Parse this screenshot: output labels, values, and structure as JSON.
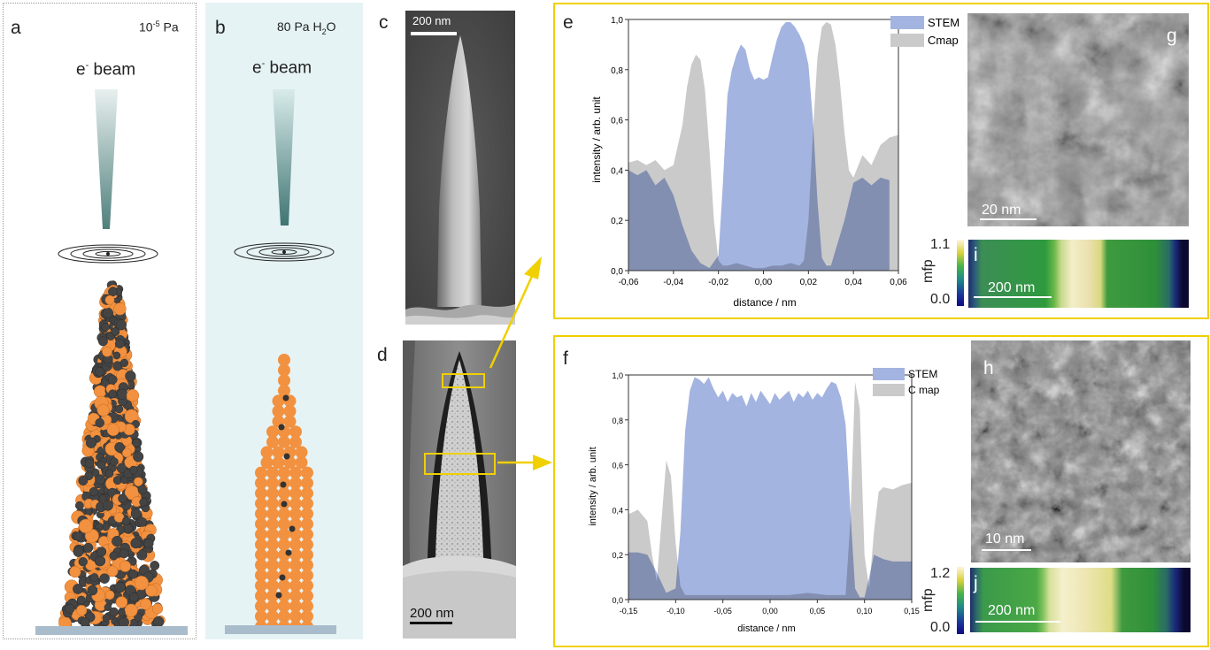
{
  "panels": {
    "a": {
      "label": "a",
      "pressure_base": "10",
      "pressure_exp": "-5",
      "pressure_unit": " Pa",
      "beam_e": "e",
      "beam_sup": "-",
      "beam_word": " beam"
    },
    "b": {
      "label": "b",
      "pressure_pre": "80 Pa H",
      "pressure_sub": "2",
      "pressure_post": "O",
      "beam_e": "e",
      "beam_sup": "-",
      "beam_word": " beam"
    },
    "c": {
      "label": "c",
      "scalebar": "200 nm"
    },
    "d": {
      "label": "d",
      "scalebar": "200 nm"
    },
    "e": {
      "label": "e"
    },
    "f": {
      "label": "f"
    },
    "g": {
      "label": "g",
      "scalebar": "20 nm"
    },
    "h": {
      "label": "h",
      "scalebar": "10 nm"
    },
    "i": {
      "label": "i",
      "scalebar": "200 nm",
      "cbar_label": "mfp",
      "cbar_max": "1.1",
      "cbar_min": "0.0"
    },
    "j": {
      "label": "j",
      "scalebar": "200 nm",
      "cbar_label": "mfp",
      "cbar_max": "1.2",
      "cbar_min": "0.0"
    }
  },
  "colors": {
    "stem": "#a4b4e0",
    "cmap": "#cacaca",
    "overlap": "#7f90c8",
    "yellow": "#f0d000",
    "orange": "#f2913f",
    "dark_sphere": "#444444",
    "panel_b_bg": "#e6f3f5"
  },
  "chart_data": [
    {
      "id": "e",
      "type": "area",
      "xlabel": "distance / nm",
      "ylabel": "intensity / arb. unit",
      "xlim": [
        -0.06,
        0.06
      ],
      "ylim": [
        0,
        1.0
      ],
      "xticks": [
        "-0,06",
        "-0,04",
        "-0,02",
        "0,00",
        "0,02",
        "0,04",
        "0,06"
      ],
      "yticks": [
        "0,0",
        "0,2",
        "0,4",
        "0,6",
        "0,8",
        "1,0"
      ],
      "legend_position": "top-right",
      "series": [
        {
          "name": "STEM",
          "x": [
            -0.06,
            -0.056,
            -0.052,
            -0.048,
            -0.044,
            -0.04,
            -0.036,
            -0.032,
            -0.028,
            -0.024,
            -0.02,
            -0.018,
            -0.016,
            -0.014,
            -0.012,
            -0.01,
            -0.008,
            -0.006,
            -0.004,
            -0.002,
            0.0,
            0.002,
            0.004,
            0.006,
            0.008,
            0.01,
            0.012,
            0.014,
            0.016,
            0.018,
            0.02,
            0.022,
            0.024,
            0.026,
            0.028,
            0.03,
            0.032,
            0.036,
            0.04,
            0.044,
            0.048,
            0.052,
            0.056
          ],
          "y": [
            0.4,
            0.38,
            0.4,
            0.34,
            0.37,
            0.3,
            0.18,
            0.08,
            0.03,
            0.01,
            0.06,
            0.35,
            0.7,
            0.8,
            0.86,
            0.9,
            0.88,
            0.8,
            0.76,
            0.77,
            0.76,
            0.77,
            0.85,
            0.92,
            0.97,
            0.99,
            0.99,
            0.97,
            0.94,
            0.9,
            0.82,
            0.6,
            0.28,
            0.05,
            0.02,
            0.02,
            0.08,
            0.2,
            0.35,
            0.37,
            0.34,
            0.37,
            0.36
          ]
        },
        {
          "name": "Cmap",
          "x": [
            -0.06,
            -0.056,
            -0.052,
            -0.048,
            -0.044,
            -0.04,
            -0.036,
            -0.034,
            -0.032,
            -0.03,
            -0.028,
            -0.026,
            -0.024,
            -0.022,
            -0.02,
            -0.018,
            -0.016,
            -0.012,
            -0.008,
            -0.004,
            0.0,
            0.004,
            0.008,
            0.012,
            0.016,
            0.018,
            0.02,
            0.022,
            0.024,
            0.026,
            0.028,
            0.03,
            0.032,
            0.034,
            0.036,
            0.038,
            0.04,
            0.044,
            0.048,
            0.052,
            0.056,
            0.06
          ],
          "y": [
            0.43,
            0.44,
            0.42,
            0.44,
            0.4,
            0.42,
            0.58,
            0.73,
            0.82,
            0.86,
            0.84,
            0.72,
            0.48,
            0.2,
            0.04,
            0.02,
            0.02,
            0.03,
            0.02,
            0.01,
            0.01,
            0.02,
            0.02,
            0.03,
            0.02,
            0.04,
            0.2,
            0.55,
            0.85,
            0.97,
            0.99,
            0.98,
            0.9,
            0.75,
            0.55,
            0.4,
            0.37,
            0.46,
            0.42,
            0.5,
            0.53,
            0.54
          ]
        }
      ]
    },
    {
      "id": "f",
      "type": "area",
      "xlabel": "distance / nm",
      "ylabel": "intensity / arb. unit",
      "xlim": [
        -0.15,
        0.15
      ],
      "ylim": [
        0,
        1.0
      ],
      "xticks": [
        "-0,15",
        "-0,10",
        "-0,05",
        "0,00",
        "0,05",
        "0,10",
        "0,15"
      ],
      "yticks": [
        "0,0",
        "0,2",
        "0,4",
        "0,6",
        "0,8",
        "1,0"
      ],
      "legend_position": "top-right",
      "series": [
        {
          "name": "STEM",
          "x": [
            -0.15,
            -0.14,
            -0.13,
            -0.12,
            -0.11,
            -0.1,
            -0.095,
            -0.09,
            -0.085,
            -0.08,
            -0.075,
            -0.07,
            -0.065,
            -0.06,
            -0.055,
            -0.05,
            -0.045,
            -0.04,
            -0.035,
            -0.03,
            -0.025,
            -0.02,
            -0.015,
            -0.01,
            -0.005,
            0.0,
            0.005,
            0.01,
            0.015,
            0.02,
            0.025,
            0.03,
            0.035,
            0.04,
            0.045,
            0.05,
            0.055,
            0.06,
            0.065,
            0.07,
            0.075,
            0.08,
            0.085,
            0.09,
            0.095,
            0.1,
            0.105,
            0.11,
            0.12,
            0.13,
            0.14,
            0.15
          ],
          "y": [
            0.21,
            0.21,
            0.2,
            0.12,
            0.03,
            0.05,
            0.3,
            0.75,
            0.93,
            0.99,
            0.98,
            0.96,
            0.99,
            0.94,
            0.9,
            0.93,
            0.88,
            0.92,
            0.9,
            0.91,
            0.86,
            0.92,
            0.88,
            0.93,
            0.9,
            0.87,
            0.92,
            0.89,
            0.91,
            0.93,
            0.88,
            0.92,
            0.9,
            0.93,
            0.89,
            0.92,
            0.9,
            0.94,
            0.97,
            0.96,
            0.9,
            0.78,
            0.4,
            0.05,
            0.01,
            0.01,
            0.1,
            0.2,
            0.18,
            0.17,
            0.17,
            0.17
          ]
        },
        {
          "name": "C map",
          "x": [
            -0.15,
            -0.14,
            -0.13,
            -0.125,
            -0.12,
            -0.115,
            -0.11,
            -0.105,
            -0.1,
            -0.095,
            -0.09,
            -0.08,
            -0.06,
            -0.04,
            -0.02,
            0.0,
            0.02,
            0.04,
            0.06,
            0.07,
            0.08,
            0.085,
            0.09,
            0.095,
            0.1,
            0.105,
            0.11,
            0.115,
            0.12,
            0.13,
            0.14,
            0.15
          ],
          "y": [
            0.38,
            0.4,
            0.35,
            0.2,
            0.08,
            0.35,
            0.62,
            0.55,
            0.25,
            0.06,
            0.02,
            0.02,
            0.02,
            0.02,
            0.02,
            0.02,
            0.02,
            0.03,
            0.02,
            0.02,
            0.02,
            0.35,
            0.97,
            0.85,
            0.2,
            0.05,
            0.3,
            0.48,
            0.5,
            0.49,
            0.51,
            0.52
          ]
        }
      ]
    }
  ]
}
